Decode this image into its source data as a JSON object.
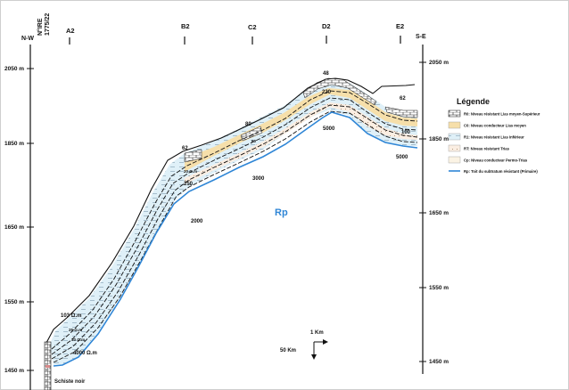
{
  "directions": {
    "left": "N-W",
    "right": "S-E"
  },
  "borehole": {
    "line1": "N°IRE",
    "line2": "1775/22"
  },
  "stations": [
    "A2",
    "B2",
    "C2",
    "D2",
    "E2"
  ],
  "left_scale": [
    "2050 m",
    "1850 m",
    "1650 m",
    "1550 m",
    "1450 m"
  ],
  "right_scale": [
    "2050 m",
    "1850 m",
    "1650 m",
    "1550 m",
    "1450 m"
  ],
  "resistivity_labels": {
    "a2_top": "103 Ω.m",
    "a2_mid1": "25 Ω.m",
    "a2_mid2": "30 Ω.m",
    "a2_bottom": "4000 Ω.m",
    "b2_top": "62",
    "b2_mid": "20 Ω.m",
    "b2_250": "250",
    "b2_2000": "2000",
    "c2_top": "80",
    "c2_mid": "60",
    "c2_3000": "3000",
    "d2_top": "48",
    "d2_230": "230",
    "d2_5000": "5000",
    "e2_62": "62",
    "e2_100": "100",
    "e2_5000": "5000"
  },
  "substratum_label": "Rp",
  "bottom_label": "Schiste noir",
  "scale": {
    "horizontal": "1 Km",
    "vertical": "50 Km"
  },
  "legend": {
    "title": "Légende",
    "items": [
      {
        "label": "R0: Niveau résistant Lias moyen-Supérieur",
        "pattern": "brick",
        "color": "#ffffff"
      },
      {
        "label": "C0: Niveau conducteur Lias moyen",
        "pattern": "fill",
        "color": "#f6dfaa"
      },
      {
        "label": "R1: Niveau résistant Lias inférieur",
        "pattern": "dash",
        "color": "#dff0f8"
      },
      {
        "label": "RT: Niveau résistant Trias",
        "pattern": "dots",
        "color": "#fbeee2"
      },
      {
        "label": "Cp: Niveau conducteur Permo-Trias",
        "pattern": "fill",
        "color": "#fbf3e4"
      },
      {
        "label": "Rp: Toit du subtratum résistant (Primaire)",
        "pattern": "line",
        "color": "#2f86d6"
      }
    ]
  },
  "colors": {
    "substratum_line": "#2f86d6",
    "r1_fill": "#dff0f8",
    "c0_fill": "#f6dfaa",
    "rt_fill": "#fbeee2",
    "rp_text": "#2f86d6"
  }
}
